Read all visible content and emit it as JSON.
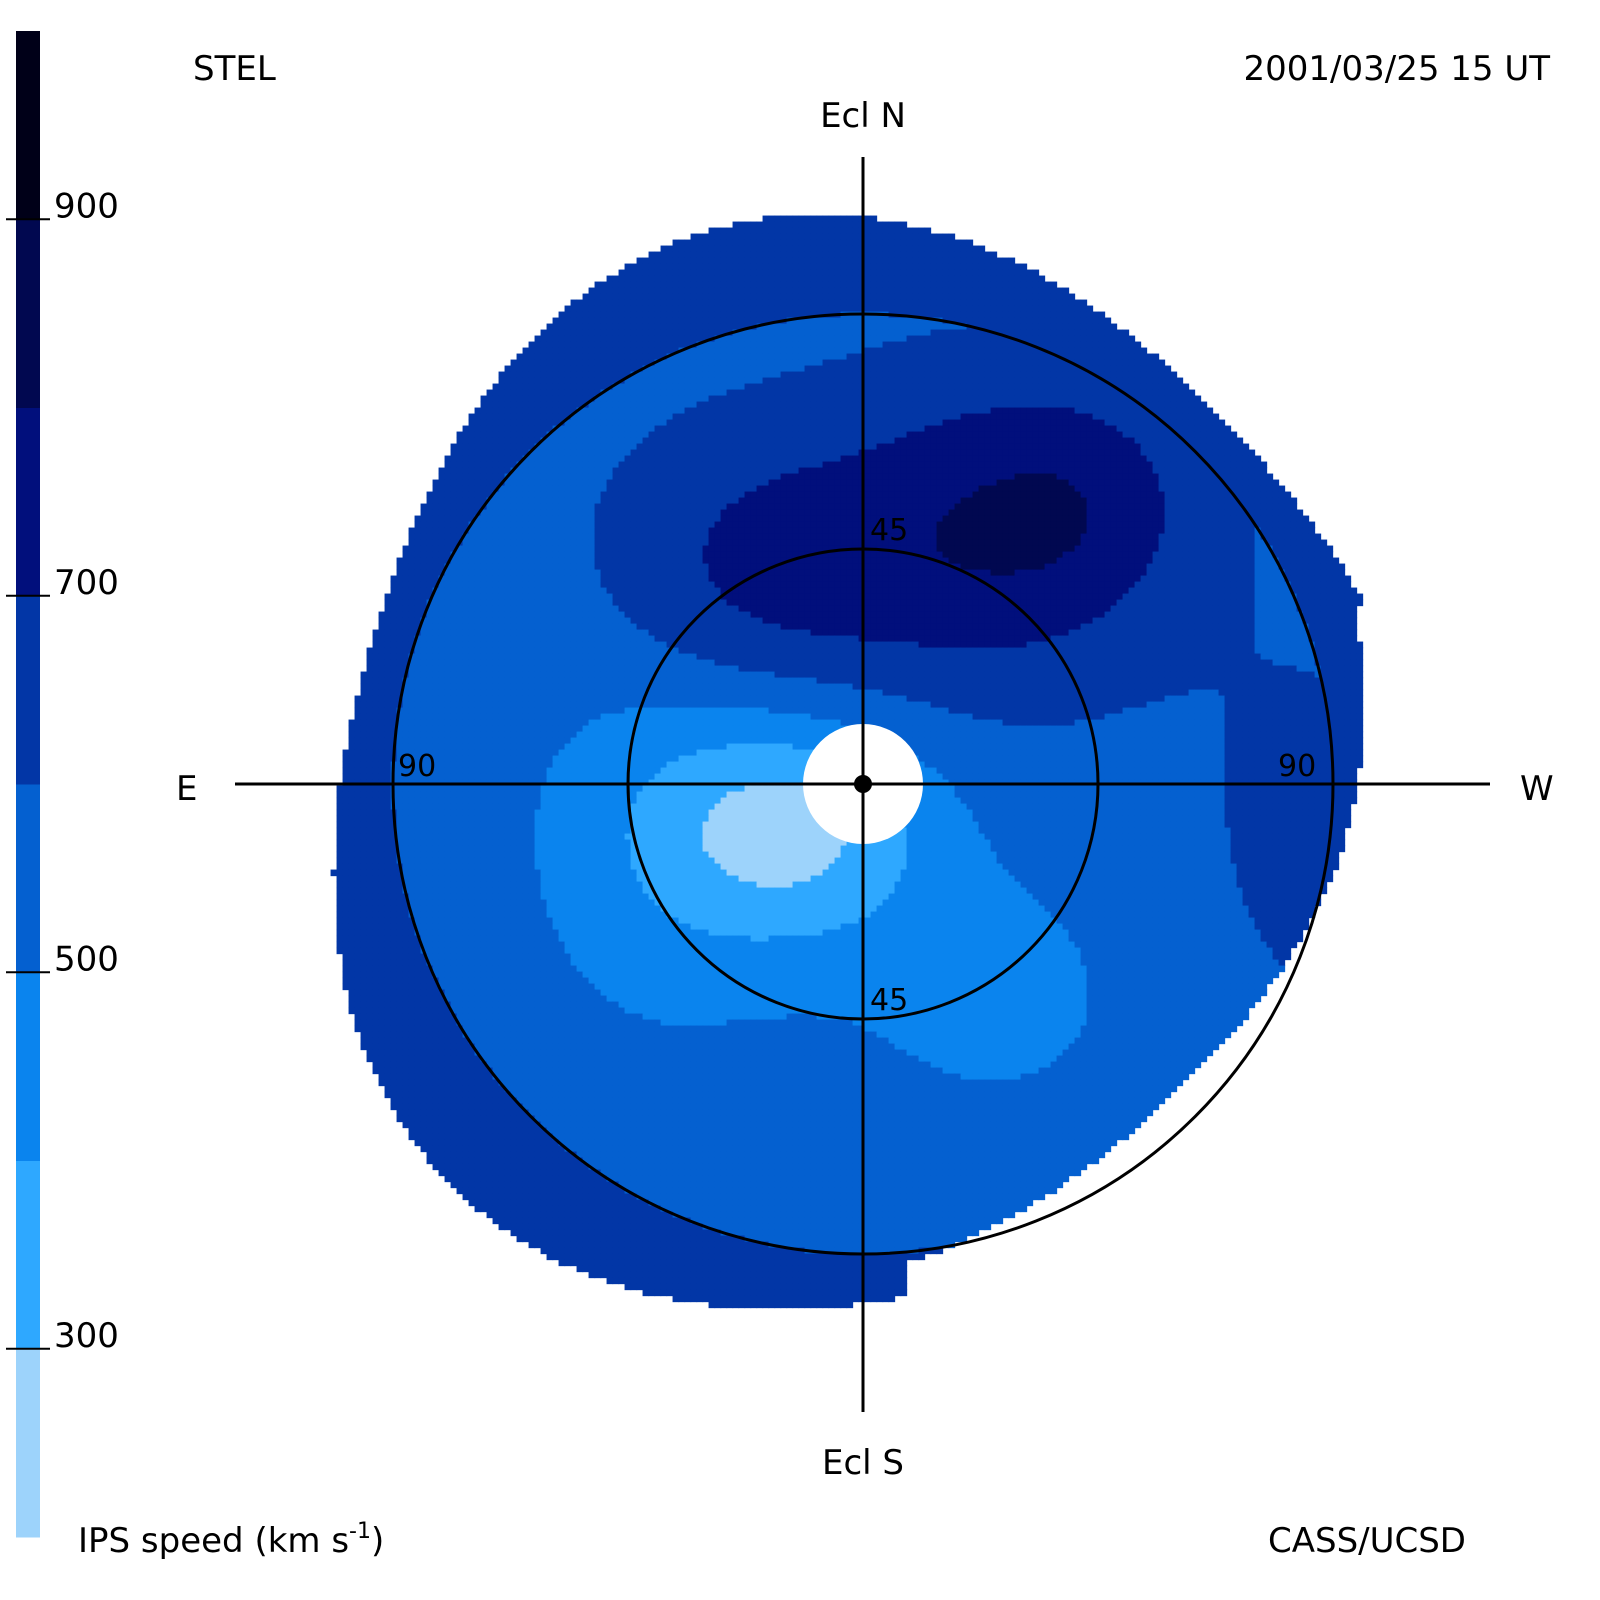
{
  "header": {
    "station": "STEL",
    "timestamp": "2001/03/25 15 UT",
    "credit": "CASS/UCSD"
  },
  "directions": {
    "north": "Ecl N",
    "south": "Ecl S",
    "east": "E",
    "west": "W"
  },
  "colorbar": {
    "label": "IPS speed (km s",
    "label_superscript": "-1",
    "label_close": ")",
    "vmin": 200,
    "vmax": 1000,
    "ticks": [
      300,
      500,
      700,
      900
    ],
    "tick_labels": [
      "300",
      "500",
      "700",
      "900"
    ],
    "bins": [
      {
        "from": 200,
        "to": 300,
        "color": "#9dd3fb"
      },
      {
        "from": 300,
        "to": 400,
        "color": "#2ea8ff"
      },
      {
        "from": 400,
        "to": 500,
        "color": "#0a84ee"
      },
      {
        "from": 500,
        "to": 600,
        "color": "#0460d0"
      },
      {
        "from": 600,
        "to": 700,
        "color": "#0236a6"
      },
      {
        "from": 700,
        "to": 800,
        "color": "#010f7c"
      },
      {
        "from": 800,
        "to": 900,
        "color": "#010850"
      },
      {
        "from": 900,
        "to": 1000,
        "color": "#000018"
      }
    ]
  },
  "chart_data": {
    "type": "heatmap",
    "projection": "polar sky map (elongation from Sun)",
    "title": "",
    "ring_elongations_deg": [
      45,
      90
    ],
    "ring_labels": [
      {
        "text": "45",
        "position": "north"
      },
      {
        "text": "45",
        "position": "south"
      },
      {
        "text": "90",
        "position": "east"
      },
      {
        "text": "90",
        "position": "west"
      }
    ],
    "map_extent_deg": 108,
    "occulted_center_deg": 11,
    "speed_regions_km_s": [
      {
        "region": "north-west, 30-90 deg",
        "speed_range": [
          800,
          900
        ]
      },
      {
        "region": "north, 20-90 deg",
        "speed_range": [
          700,
          800
        ]
      },
      {
        "region": "west and south-west limb, 60-100 deg",
        "speed_range": [
          600,
          700
        ]
      },
      {
        "region": "outer north limb, 90-105 deg",
        "speed_range": [
          600,
          700
        ]
      },
      {
        "region": "south and south-east, 40-90 deg",
        "speed_range": [
          500,
          600
        ]
      },
      {
        "region": "south-east, 15-40 deg",
        "speed_range": [
          400,
          500
        ]
      },
      {
        "region": "near center south-east, 10-30 deg",
        "speed_range": [
          300,
          400
        ]
      },
      {
        "region": "near center south-east small patch",
        "speed_range": [
          200,
          300
        ]
      }
    ],
    "unit": "km s-1"
  }
}
